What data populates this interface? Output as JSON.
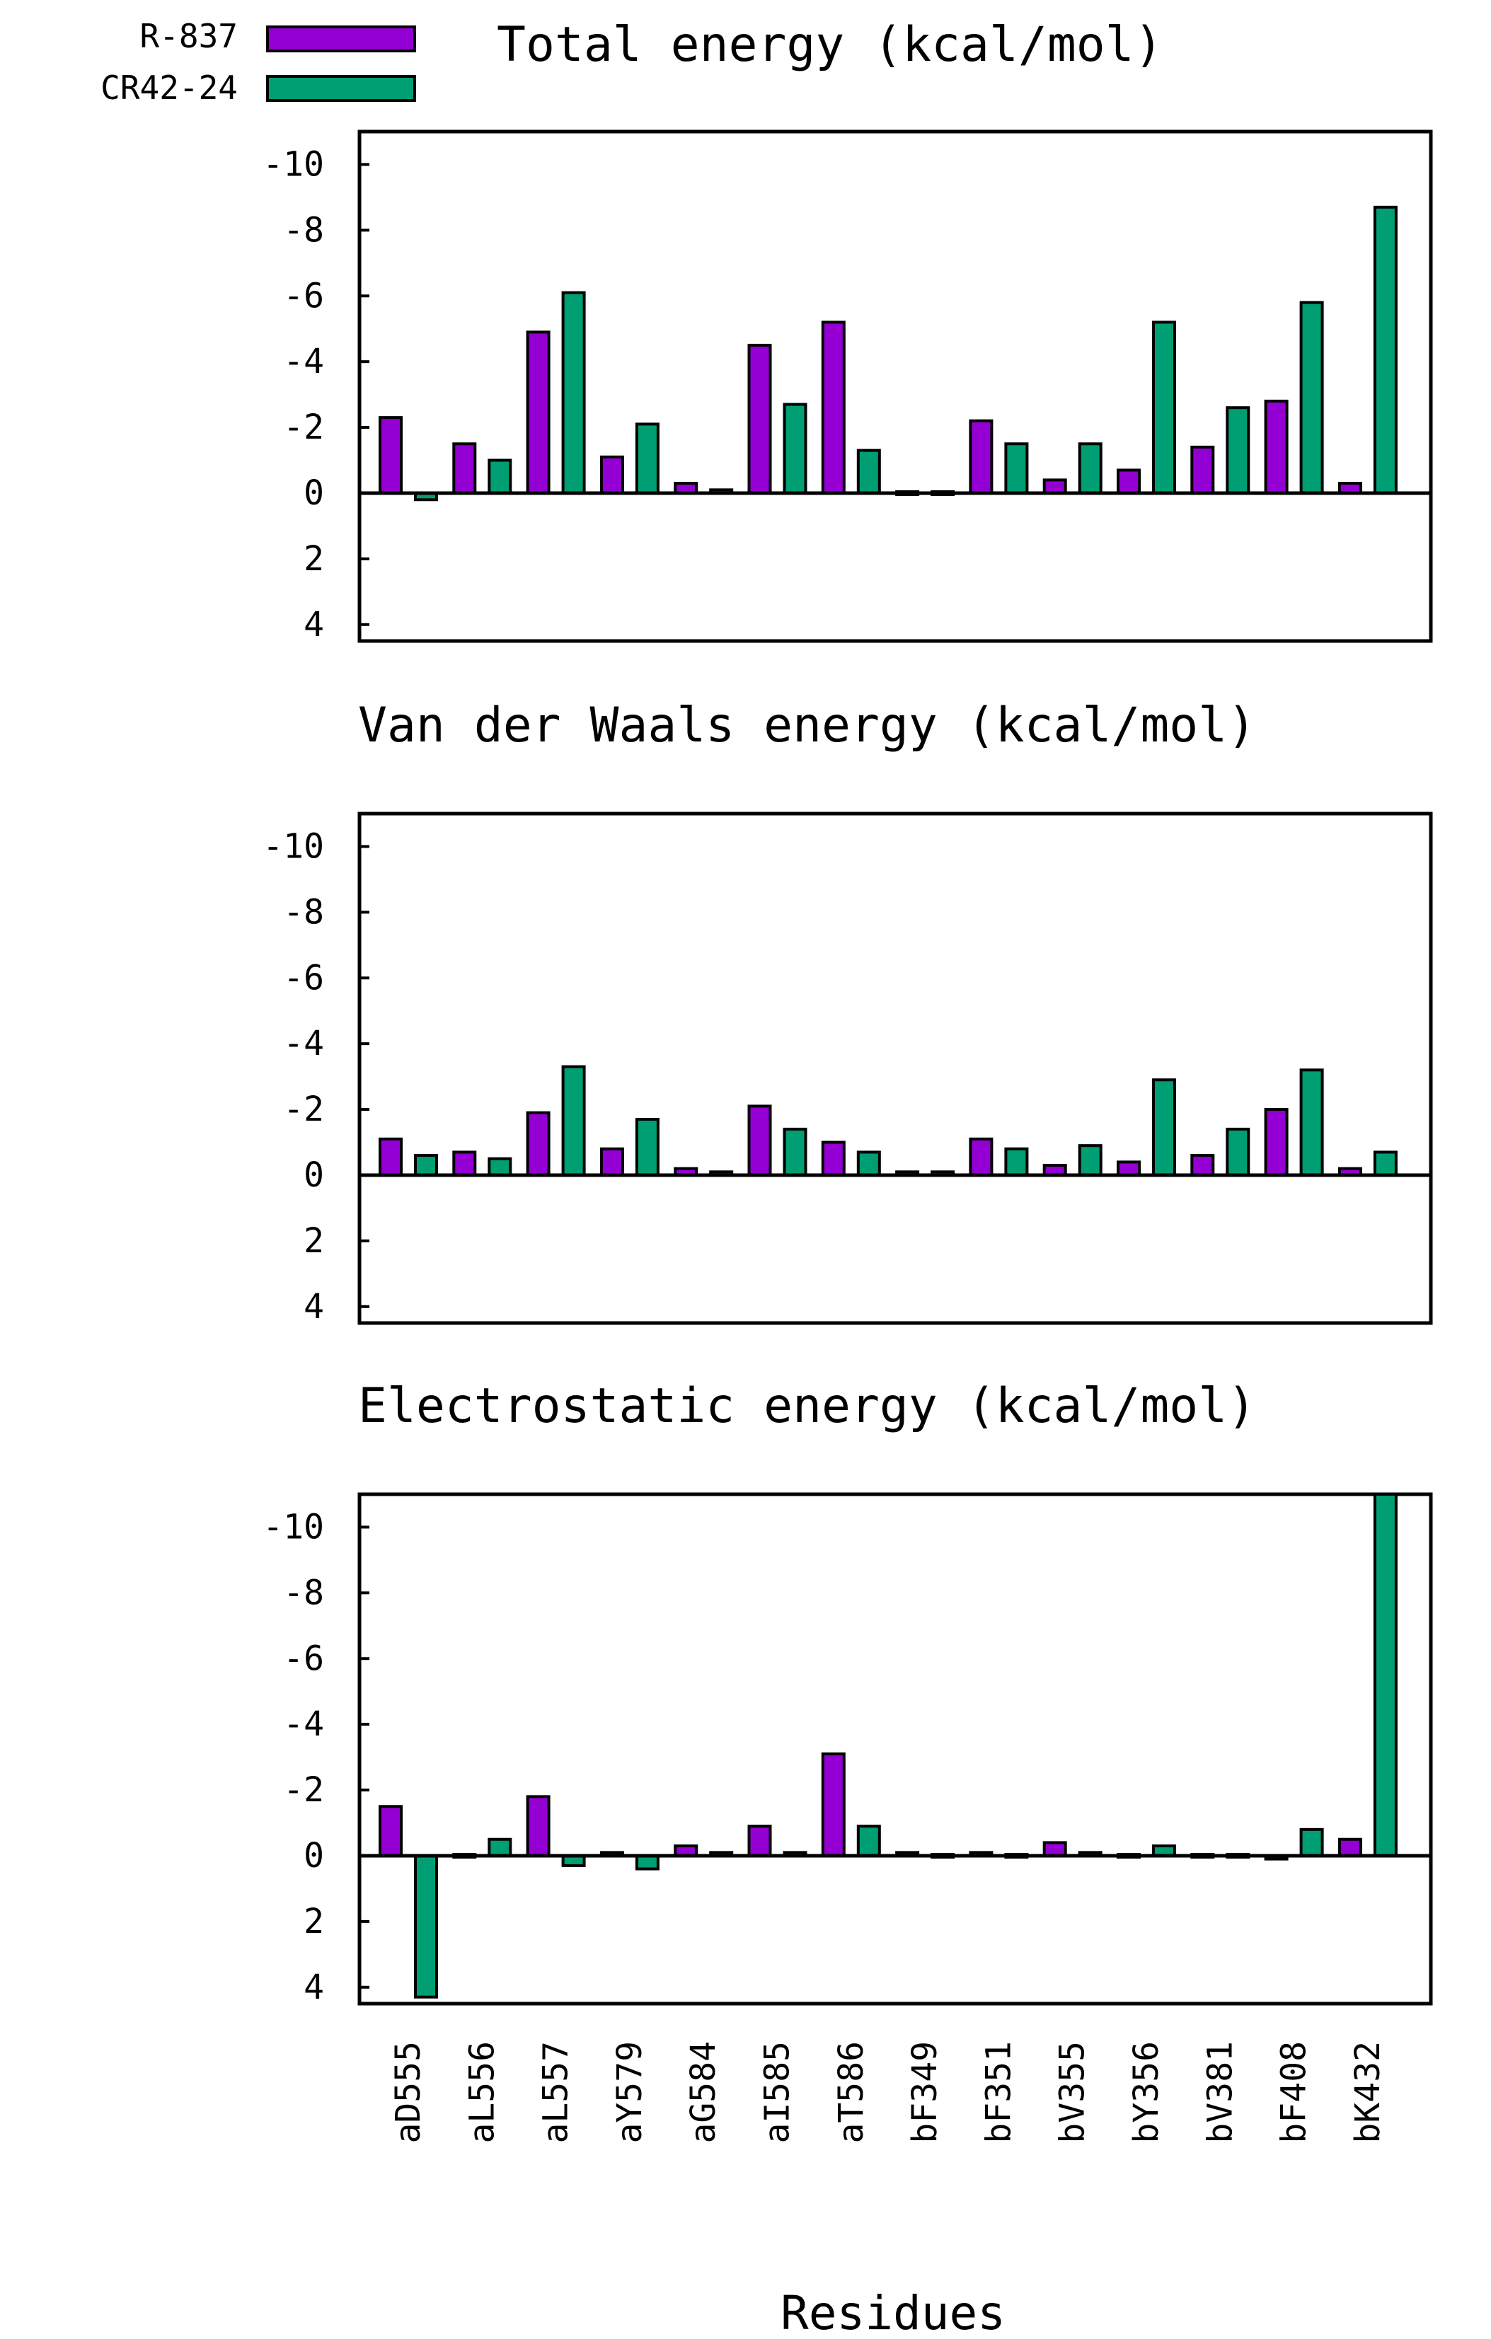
{
  "legend": {
    "items": [
      {
        "label": "R-837",
        "color": "#9400d3"
      },
      {
        "label": "CR42-24",
        "color": "#009e73"
      }
    ]
  },
  "x_axis_label": "Residues",
  "chart_data": [
    {
      "type": "bar",
      "title": "Total energy (kcal/mol)",
      "xlabel": "Residues",
      "ylabel": "",
      "ylim": [
        4.5,
        -11
      ],
      "y_inverted": true,
      "yticks": [
        -10,
        -8,
        -6,
        -4,
        -2,
        0,
        2,
        4
      ],
      "ytick_labels": [
        "-10",
        "-8",
        "-6",
        "-4",
        "-2",
        "0",
        "2",
        "4"
      ],
      "categories": [
        "aD555",
        "aL556",
        "aL557",
        "aY579",
        "aG584",
        "aI585",
        "aT586",
        "bF349",
        "bF351",
        "bV355",
        "bY356",
        "bV381",
        "bF408",
        "bK432"
      ],
      "series": [
        {
          "name": "R-837",
          "color": "#9400d3",
          "values": [
            -2.3,
            -1.5,
            -4.9,
            -1.1,
            -0.3,
            -4.5,
            -5.2,
            -0.05,
            -2.2,
            -0.4,
            -0.7,
            -1.4,
            -2.8,
            -0.3
          ]
        },
        {
          "name": "CR42-24",
          "color": "#009e73",
          "values": [
            0.2,
            -1.0,
            -6.1,
            -2.1,
            -0.1,
            -2.7,
            -1.3,
            -0.05,
            -1.5,
            -1.5,
            -5.2,
            -2.6,
            -5.8,
            -8.7
          ]
        }
      ]
    },
    {
      "type": "bar",
      "title": "Van der Waals energy (kcal/mol)",
      "xlabel": "Residues",
      "ylabel": "",
      "ylim": [
        4.5,
        -11
      ],
      "y_inverted": true,
      "yticks": [
        -10,
        -8,
        -6,
        -4,
        -2,
        0,
        2,
        4
      ],
      "ytick_labels": [
        "-10",
        "-8",
        "-6",
        "-4",
        "-2",
        "0",
        "2",
        "4"
      ],
      "categories": [
        "aD555",
        "aL556",
        "aL557",
        "aY579",
        "aG584",
        "aI585",
        "aT586",
        "bF349",
        "bF351",
        "bV355",
        "bY356",
        "bV381",
        "bF408",
        "bK432"
      ],
      "series": [
        {
          "name": "R-837",
          "color": "#9400d3",
          "values": [
            -1.1,
            -0.7,
            -1.9,
            -0.8,
            -0.2,
            -2.1,
            -1.0,
            -0.1,
            -1.1,
            -0.3,
            -0.4,
            -0.6,
            -2.0,
            -0.2
          ]
        },
        {
          "name": "CR42-24",
          "color": "#009e73",
          "values": [
            -0.6,
            -0.5,
            -3.3,
            -1.7,
            -0.1,
            -1.4,
            -0.7,
            -0.1,
            -0.8,
            -0.9,
            -2.9,
            -1.4,
            -3.2,
            -0.7
          ]
        }
      ]
    },
    {
      "type": "bar",
      "title": "Electrostatic energy (kcal/mol)",
      "xlabel": "Residues",
      "ylabel": "",
      "ylim": [
        4.5,
        -11
      ],
      "y_inverted": true,
      "yticks": [
        -10,
        -8,
        -6,
        -4,
        -2,
        0,
        2,
        4
      ],
      "ytick_labels": [
        "-10",
        "-8",
        "-6",
        "-4",
        "-2",
        "0",
        "2",
        "4"
      ],
      "categories": [
        "aD555",
        "aL556",
        "aL557",
        "aY579",
        "aG584",
        "aI585",
        "aT586",
        "bF349",
        "bF351",
        "bV355",
        "bY356",
        "bV381",
        "bF408",
        "bK432"
      ],
      "series": [
        {
          "name": "R-837",
          "color": "#9400d3",
          "values": [
            -1.5,
            0.0,
            -1.8,
            -0.1,
            -0.3,
            -0.9,
            -3.1,
            -0.1,
            -0.1,
            -0.4,
            0.0,
            0.0,
            0.1,
            -0.5
          ]
        },
        {
          "name": "CR42-24",
          "color": "#009e73",
          "values": [
            4.3,
            -0.5,
            0.3,
            0.4,
            -0.1,
            -0.1,
            -0.9,
            0.0,
            0.0,
            -0.1,
            -0.3,
            0.0,
            -0.8,
            -11.0
          ]
        }
      ]
    }
  ]
}
